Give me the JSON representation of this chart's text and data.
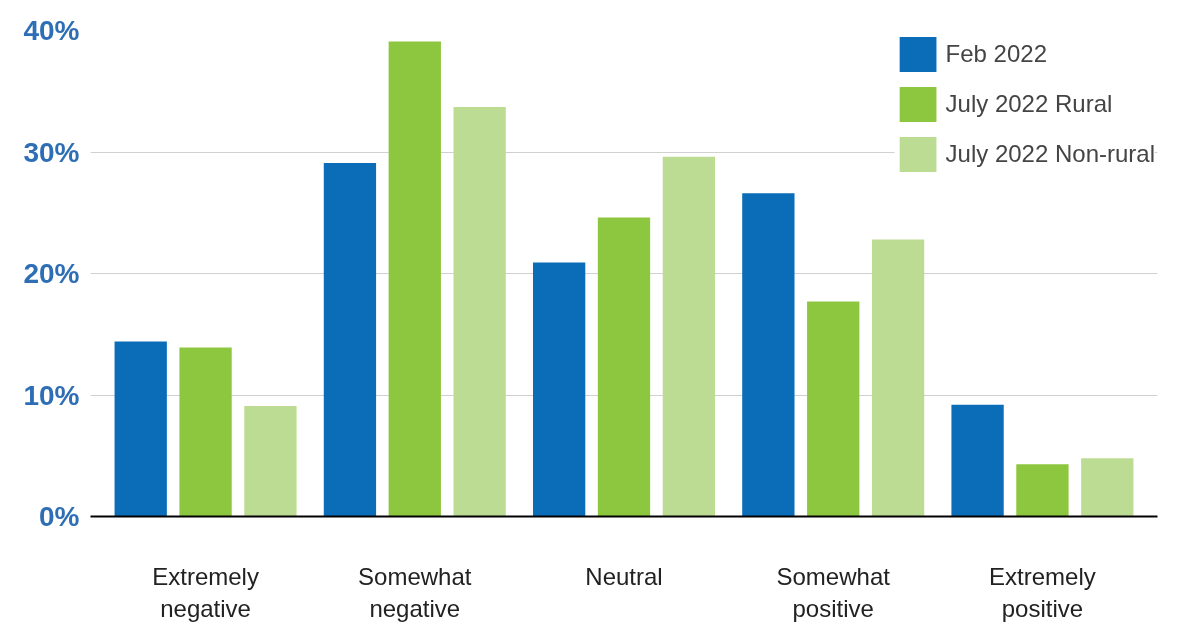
{
  "chart_data": {
    "type": "bar",
    "categories": [
      "Extremely\nnegative",
      "Somewhat\nnegative",
      "Neutral",
      "Somewhat\npositive",
      "Extremely\npositive"
    ],
    "series": [
      {
        "name": "Feb 2022",
        "color": "#0b6db7",
        "values": [
          14.4,
          29.1,
          20.9,
          26.6,
          9.2
        ]
      },
      {
        "name": "July 2022 Rural",
        "color": "#8dc63f",
        "values": [
          13.9,
          39.1,
          24.6,
          17.7,
          4.3
        ]
      },
      {
        "name": "July 2022 Non-rural",
        "color": "#bddc93",
        "values": [
          9.1,
          33.7,
          29.6,
          22.8,
          4.8
        ]
      }
    ],
    "ylim": [
      0,
      40
    ],
    "yticks": [
      {
        "value": 0,
        "label": "0%"
      },
      {
        "value": 10,
        "label": "10%"
      },
      {
        "value": 20,
        "label": "20%"
      },
      {
        "value": 30,
        "label": "30%"
      },
      {
        "value": 40,
        "label": "40%"
      }
    ],
    "grid": "y",
    "legend": "top right"
  }
}
